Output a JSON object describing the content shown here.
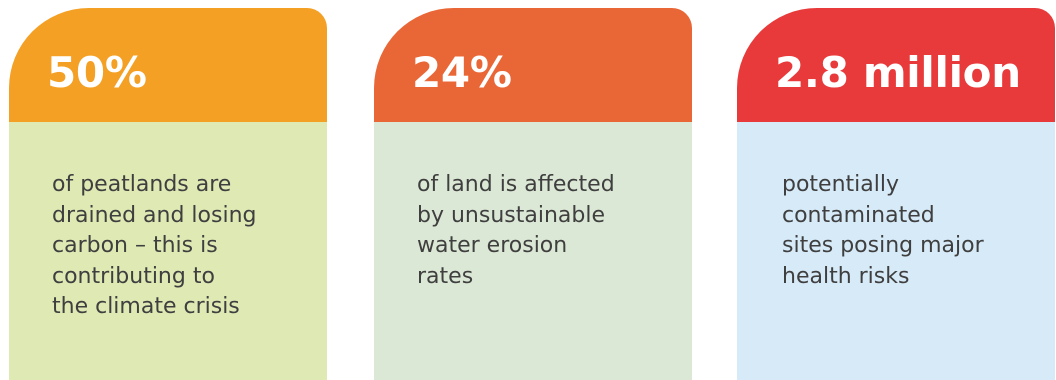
{
  "cards": [
    {
      "stat": "50%",
      "description": "of peatlands are\ndrained and losing\ncarbon – this is\ncontributing to\nthe climate crisis",
      "header_color": "#f3a024",
      "body_color": "#dfe9b4"
    },
    {
      "stat": "24%",
      "description": "of land is affected\nby unsustainable\nwater erosion\nrates",
      "header_color": "#e96736",
      "body_color": "#dce8d6"
    },
    {
      "stat": "2.8 million",
      "description": "potentially\ncontaminated\nsites posing major\nhealth risks",
      "header_color": "#e83a3a",
      "body_color": "#d7eaf8"
    }
  ]
}
